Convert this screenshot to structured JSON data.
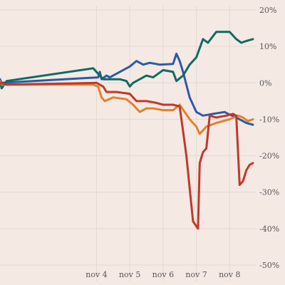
{
  "chart_data": {
    "type": "line",
    "title": "",
    "xlabel": "",
    "ylabel": "",
    "x_ticks": [
      {
        "label": "nov 4",
        "x": 4
      },
      {
        "label": "nov 5",
        "x": 5
      },
      {
        "label": "nov 6",
        "x": 6
      },
      {
        "label": "nov 7",
        "x": 7
      },
      {
        "label": "nov 8",
        "x": 8
      }
    ],
    "xlim": [
      1.1,
      8.7
    ],
    "y_ticks": [
      20,
      10,
      0,
      -10,
      -20,
      -30,
      -40,
      -50
    ],
    "y_tick_suffix": "%",
    "ylim": [
      -50,
      20
    ],
    "grid": true,
    "y_axis_side": "right",
    "series": [
      {
        "color": "#2b5aa6",
        "points": [
          [
            1.1,
            1
          ],
          [
            1.15,
            0
          ],
          [
            4.05,
            1.5
          ],
          [
            4.1,
            3
          ],
          [
            4.15,
            1
          ],
          [
            4.3,
            2
          ],
          [
            4.4,
            1.5
          ],
          [
            4.7,
            3
          ],
          [
            5.0,
            4.5
          ],
          [
            5.2,
            6
          ],
          [
            5.4,
            5
          ],
          [
            5.6,
            5.5
          ],
          [
            5.9,
            5
          ],
          [
            6.3,
            5.2
          ],
          [
            6.4,
            8
          ],
          [
            6.5,
            6
          ],
          [
            6.6,
            3
          ],
          [
            6.8,
            -4
          ],
          [
            7.0,
            -8
          ],
          [
            7.2,
            -9
          ],
          [
            7.5,
            -8.5
          ],
          [
            7.85,
            -8
          ],
          [
            7.95,
            -8.5
          ],
          [
            8.2,
            -9.5
          ],
          [
            8.5,
            -11
          ],
          [
            8.7,
            -11.5
          ]
        ]
      },
      {
        "color": "#0e6b63",
        "points": [
          [
            1.1,
            0.5
          ],
          [
            1.15,
            -1.5
          ],
          [
            1.3,
            0.5
          ],
          [
            3.9,
            4
          ],
          [
            4.1,
            2
          ],
          [
            4.2,
            1
          ],
          [
            4.7,
            1
          ],
          [
            4.9,
            0.5
          ],
          [
            5.0,
            -1
          ],
          [
            5.1,
            0
          ],
          [
            5.5,
            2
          ],
          [
            5.7,
            1.5
          ],
          [
            6.0,
            3.5
          ],
          [
            6.3,
            3
          ],
          [
            6.4,
            0.5
          ],
          [
            6.6,
            2
          ],
          [
            6.8,
            5
          ],
          [
            7.0,
            7
          ],
          [
            7.2,
            12
          ],
          [
            7.35,
            11
          ],
          [
            7.6,
            14
          ],
          [
            8.0,
            14
          ],
          [
            8.2,
            12
          ],
          [
            8.35,
            11
          ],
          [
            8.5,
            11.5
          ],
          [
            8.7,
            12
          ]
        ]
      },
      {
        "color": "#e0832a",
        "points": [
          [
            1.1,
            0.5
          ],
          [
            1.15,
            -0.5
          ],
          [
            3.9,
            -0.5
          ],
          [
            4.05,
            -1
          ],
          [
            4.15,
            -4
          ],
          [
            4.25,
            -5
          ],
          [
            4.5,
            -4
          ],
          [
            4.9,
            -4.5
          ],
          [
            5.1,
            -6
          ],
          [
            5.3,
            -8
          ],
          [
            5.5,
            -7
          ],
          [
            5.7,
            -7
          ],
          [
            6.0,
            -7.5
          ],
          [
            6.3,
            -7.5
          ],
          [
            6.5,
            -6
          ],
          [
            6.8,
            -10
          ],
          [
            7.0,
            -12
          ],
          [
            7.1,
            -14
          ],
          [
            7.3,
            -12
          ],
          [
            7.6,
            -11
          ],
          [
            8.0,
            -10
          ],
          [
            8.25,
            -9
          ],
          [
            8.4,
            -9.5
          ],
          [
            8.55,
            -10.5
          ],
          [
            8.7,
            -10
          ]
        ]
      },
      {
        "color": "#c0392b",
        "points": [
          [
            1.1,
            0
          ],
          [
            1.3,
            -0.5
          ],
          [
            4.0,
            0
          ],
          [
            4.2,
            -1
          ],
          [
            4.3,
            -2.5
          ],
          [
            4.6,
            -2.5
          ],
          [
            5.0,
            -3
          ],
          [
            5.2,
            -5
          ],
          [
            5.5,
            -5
          ],
          [
            5.8,
            -5.5
          ],
          [
            6.0,
            -6
          ],
          [
            6.3,
            -6
          ],
          [
            6.5,
            -6.5
          ],
          [
            6.7,
            -20
          ],
          [
            6.9,
            -38
          ],
          [
            7.05,
            -40
          ],
          [
            7.1,
            -22
          ],
          [
            7.2,
            -19
          ],
          [
            7.3,
            -18
          ],
          [
            7.4,
            -9
          ],
          [
            7.6,
            -9.5
          ],
          [
            7.9,
            -9
          ],
          [
            8.1,
            -8.5
          ],
          [
            8.2,
            -9
          ],
          [
            8.3,
            -28
          ],
          [
            8.4,
            -27
          ],
          [
            8.5,
            -24
          ],
          [
            8.6,
            -22.5
          ],
          [
            8.7,
            -22
          ]
        ]
      }
    ]
  }
}
